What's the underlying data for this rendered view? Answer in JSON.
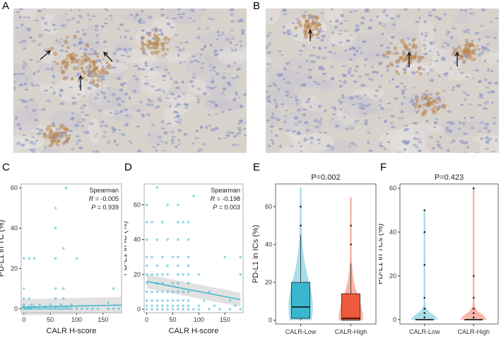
{
  "panels": {
    "A": {
      "letter": "A"
    },
    "B": {
      "letter": "B"
    },
    "C": {
      "letter": "C"
    },
    "D": {
      "letter": "D"
    },
    "E": {
      "letter": "E"
    },
    "F": {
      "letter": "F"
    }
  },
  "colors": {
    "calr_low": "#3bb6cf",
    "calr_high": "#ef5a3c",
    "scatter": "#3bb6cf",
    "ihc_bg": "#d8d2cc",
    "ihc_nuclei": "#8e9bc6",
    "ihc_brown": "#b98652"
  },
  "chart_data": [
    {
      "id": "C",
      "type": "scatter",
      "xlabel": "CALR H-score",
      "ylabel": "PD-L1 in TC (%)",
      "xlim": [
        -5,
        185
      ],
      "ylim": [
        -2,
        62
      ],
      "xticks": [
        0,
        50,
        100,
        150
      ],
      "yticks": [
        0,
        20,
        40,
        60
      ],
      "annotation": {
        "method": "Spearman",
        "r_label": "R",
        "r_value": "= -0.005",
        "p_label": "P",
        "p_value": "= 0.939"
      },
      "trend": {
        "x": [
          -5,
          185
        ],
        "y": [
          0.7,
          1.8
        ]
      },
      "points": [
        [
          0,
          0
        ],
        [
          3,
          0
        ],
        [
          6,
          0
        ],
        [
          9,
          0
        ],
        [
          12,
          0
        ],
        [
          15,
          0
        ],
        [
          20,
          0
        ],
        [
          25,
          0
        ],
        [
          30,
          0
        ],
        [
          35,
          0
        ],
        [
          40,
          0
        ],
        [
          45,
          0
        ],
        [
          50,
          0
        ],
        [
          55,
          0
        ],
        [
          60,
          0
        ],
        [
          65,
          0
        ],
        [
          70,
          0
        ],
        [
          75,
          0
        ],
        [
          80,
          0
        ],
        [
          85,
          0
        ],
        [
          90,
          0
        ],
        [
          100,
          0
        ],
        [
          110,
          0
        ],
        [
          120,
          0
        ],
        [
          130,
          0
        ],
        [
          140,
          0
        ],
        [
          160,
          0
        ],
        [
          170,
          0
        ],
        [
          180,
          0
        ],
        [
          0,
          1
        ],
        [
          10,
          1
        ],
        [
          20,
          1
        ],
        [
          40,
          1
        ],
        [
          60,
          1
        ],
        [
          80,
          1
        ],
        [
          0,
          2
        ],
        [
          15,
          2
        ],
        [
          30,
          2
        ],
        [
          50,
          2
        ],
        [
          70,
          2
        ],
        [
          90,
          2
        ],
        [
          0,
          5
        ],
        [
          60,
          5
        ],
        [
          75,
          5
        ],
        [
          10,
          5
        ],
        [
          0,
          10
        ],
        [
          60,
          10
        ],
        [
          75,
          10
        ],
        [
          160,
          3
        ],
        [
          0,
          25
        ],
        [
          10,
          25
        ],
        [
          20,
          25
        ],
        [
          60,
          25
        ],
        [
          100,
          25
        ],
        [
          60,
          40
        ],
        [
          75,
          30
        ],
        [
          60,
          50
        ],
        [
          80,
          60
        ],
        [
          170,
          10
        ]
      ]
    },
    {
      "id": "D",
      "type": "scatter",
      "xlabel": "CALR H-score",
      "ylabel": "PD-L1 in IC (%)",
      "xlim": [
        -5,
        185
      ],
      "ylim": [
        -2,
        72
      ],
      "xticks": [
        0,
        50,
        100,
        150
      ],
      "yticks": [
        0,
        20,
        40,
        60
      ],
      "annotation": {
        "method": "Spearman",
        "r_label": "R",
        "r_value": "= -0.198",
        "p_label": "P",
        "p_value": "= 0.003"
      },
      "trend": {
        "x": [
          0,
          180
        ],
        "y": [
          16,
          5.5
        ]
      },
      "points": [
        [
          0,
          0
        ],
        [
          10,
          0
        ],
        [
          20,
          0
        ],
        [
          30,
          0
        ],
        [
          40,
          0
        ],
        [
          50,
          0
        ],
        [
          60,
          0
        ],
        [
          70,
          0
        ],
        [
          80,
          0
        ],
        [
          90,
          0
        ],
        [
          100,
          0
        ],
        [
          120,
          0
        ],
        [
          140,
          0
        ],
        [
          160,
          0
        ],
        [
          180,
          0
        ],
        [
          0,
          2
        ],
        [
          10,
          2
        ],
        [
          20,
          2
        ],
        [
          30,
          2
        ],
        [
          40,
          2
        ],
        [
          50,
          2
        ],
        [
          60,
          2
        ],
        [
          70,
          2
        ],
        [
          80,
          2
        ],
        [
          100,
          2
        ],
        [
          130,
          2
        ],
        [
          170,
          2
        ],
        [
          0,
          5
        ],
        [
          10,
          5
        ],
        [
          20,
          5
        ],
        [
          30,
          5
        ],
        [
          40,
          5
        ],
        [
          50,
          5
        ],
        [
          60,
          5
        ],
        [
          70,
          5
        ],
        [
          80,
          5
        ],
        [
          110,
          5
        ],
        [
          160,
          5
        ],
        [
          0,
          10
        ],
        [
          10,
          10
        ],
        [
          20,
          10
        ],
        [
          30,
          10
        ],
        [
          40,
          10
        ],
        [
          50,
          10
        ],
        [
          60,
          10
        ],
        [
          70,
          10
        ],
        [
          80,
          10
        ],
        [
          120,
          10
        ],
        [
          0,
          15
        ],
        [
          20,
          15
        ],
        [
          30,
          15
        ],
        [
          50,
          15
        ],
        [
          60,
          15
        ],
        [
          80,
          15
        ],
        [
          0,
          20
        ],
        [
          10,
          20
        ],
        [
          20,
          20
        ],
        [
          30,
          20
        ],
        [
          40,
          20
        ],
        [
          60,
          20
        ],
        [
          70,
          20
        ],
        [
          80,
          20
        ],
        [
          100,
          20
        ],
        [
          180,
          20
        ],
        [
          0,
          25
        ],
        [
          20,
          25
        ],
        [
          40,
          25
        ],
        [
          60,
          25
        ],
        [
          80,
          25
        ],
        [
          0,
          30
        ],
        [
          10,
          30
        ],
        [
          30,
          30
        ],
        [
          50,
          30
        ],
        [
          60,
          30
        ],
        [
          80,
          30
        ],
        [
          150,
          30
        ],
        [
          180,
          30
        ],
        [
          0,
          40
        ],
        [
          20,
          40
        ],
        [
          40,
          40
        ],
        [
          60,
          40
        ],
        [
          80,
          40
        ],
        [
          0,
          50
        ],
        [
          10,
          50
        ],
        [
          30,
          50
        ],
        [
          60,
          50
        ],
        [
          70,
          50
        ],
        [
          80,
          50
        ],
        [
          0,
          60
        ],
        [
          40,
          60
        ],
        [
          60,
          60
        ],
        [
          20,
          70
        ],
        [
          90,
          65
        ]
      ]
    },
    {
      "id": "E",
      "type": "box",
      "title": "P=0.002",
      "ylabel": "PD-L1 in ICs (%)",
      "categories": [
        "CALR-Low",
        "CALR-High"
      ],
      "ylim": [
        -2,
        72
      ],
      "yticks": [
        0,
        20,
        40,
        60
      ],
      "boxes": [
        {
          "name": "CALR-Low",
          "q1": 1,
          "median": 7,
          "q3": 20,
          "whisker_low": 0,
          "whisker_high": 45,
          "max": 70,
          "outliers": [
            50,
            60
          ]
        },
        {
          "name": "CALR-High",
          "q1": 0,
          "median": 1,
          "q3": 14,
          "whisker_low": 0,
          "whisker_high": 30,
          "max": 65,
          "outliers": [
            40,
            50
          ]
        }
      ]
    },
    {
      "id": "F",
      "type": "box",
      "title": "P=0.423",
      "ylabel": "PD-L1 in TCs (%)",
      "categories": [
        "CALR-Low",
        "CALR-High"
      ],
      "ylim": [
        -2,
        62
      ],
      "yticks": [
        0,
        20,
        40,
        60
      ],
      "boxes": [
        {
          "name": "CALR-Low",
          "q1": 0,
          "median": 0,
          "q3": 0,
          "whisker_low": 0,
          "whisker_high": 0,
          "max": 50,
          "outliers": [
            1,
            3,
            5,
            10,
            25,
            40,
            50
          ]
        },
        {
          "name": "CALR-High",
          "q1": 0,
          "median": 0,
          "q3": 0,
          "whisker_low": 0,
          "whisker_high": 0,
          "max": 60,
          "outliers": [
            1,
            3,
            5,
            10,
            20,
            60
          ]
        }
      ]
    }
  ]
}
